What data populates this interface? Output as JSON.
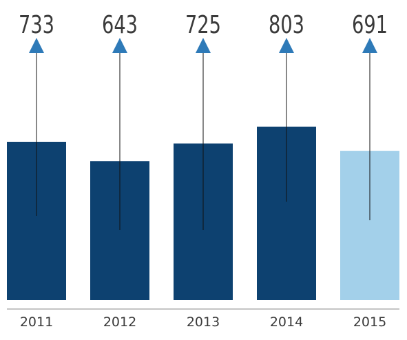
{
  "chart_data": {
    "type": "bar",
    "categories": [
      "2011",
      "2012",
      "2013",
      "2014",
      "2015"
    ],
    "values": [
      733,
      643,
      725,
      803,
      691
    ],
    "highlight_index": 4,
    "colors": {
      "bar": "#0d4170",
      "highlight_bar": "#a3d0ea",
      "arrow": "#2e7ab8",
      "value_label": "#3a3a3a",
      "category_label": "#3a3a3a",
      "axis": "#8a8a8a"
    },
    "title": "",
    "xlabel": "",
    "ylabel": "",
    "grid": false,
    "legend": "none"
  }
}
